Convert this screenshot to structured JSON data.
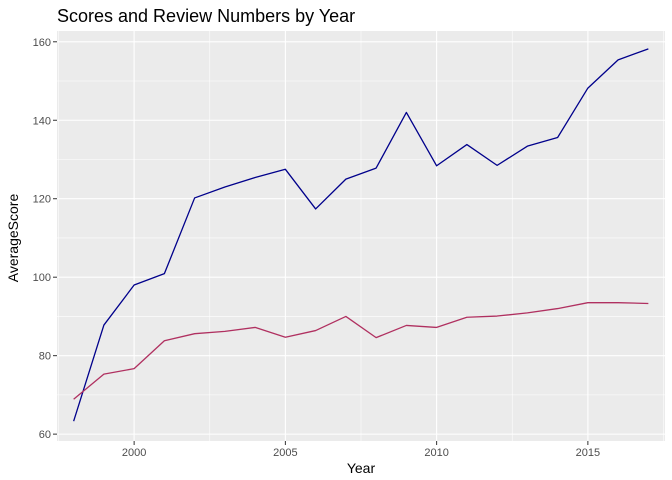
{
  "chart_data": {
    "type": "line",
    "title": "Scores and Review Numbers by Year",
    "xlabel": "Year",
    "ylabel": "AverageScore",
    "xlim": [
      1997.45,
      2017.55
    ],
    "ylim": [
      58.25,
      162.75
    ],
    "x_ticks": [
      2000,
      2005,
      2010,
      2015
    ],
    "x_minor_ticks": [
      1997.5,
      2002.5,
      2007.5,
      2012.5,
      2017.5
    ],
    "y_ticks": [
      60,
      80,
      100,
      120,
      140,
      160
    ],
    "y_minor_ticks": [
      70,
      90,
      110,
      130,
      150
    ],
    "grid": true,
    "background": "#EBEBEB",
    "grid_color": "#FFFFFF",
    "x": [
      1998,
      1999,
      2000,
      2001,
      2002,
      2003,
      2004,
      2005,
      2006,
      2007,
      2008,
      2009,
      2010,
      2011,
      2012,
      2013,
      2014,
      2015,
      2016,
      2017
    ],
    "series": [
      {
        "color": "#00008B",
        "values": [
          63.3,
          87.8,
          98.0,
          100.9,
          120.2,
          123.0,
          125.4,
          127.5,
          117.4,
          125.0,
          127.8,
          142.0,
          128.4,
          133.8,
          128.5,
          133.4,
          135.6,
          148.2,
          155.4,
          158.2
        ]
      },
      {
        "color": "#B03060",
        "values": [
          68.9,
          75.3,
          76.7,
          83.8,
          85.6,
          86.2,
          87.2,
          84.7,
          86.4,
          90.0,
          84.6,
          87.7,
          87.2,
          89.8,
          90.1,
          90.9,
          92.0,
          93.5,
          93.5,
          93.3
        ]
      }
    ]
  }
}
